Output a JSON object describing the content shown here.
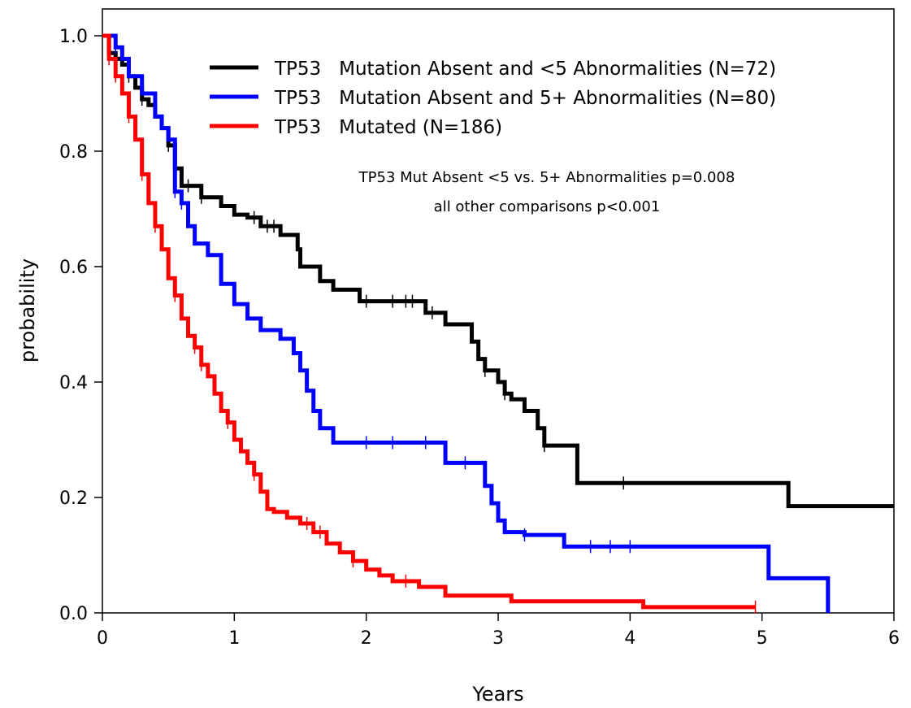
{
  "chart_data": {
    "type": "line",
    "subtype": "kaplan-meier-step",
    "xlabel": "Years",
    "ylabel": "probability",
    "xlim": [
      0,
      6
    ],
    "ylim": [
      0,
      1
    ],
    "xticks": [
      "0",
      "1",
      "2",
      "3",
      "4",
      "5",
      "6"
    ],
    "yticks": [
      "0.0",
      "0.2",
      "0.4",
      "0.6",
      "0.8",
      "1.0"
    ],
    "grid": false,
    "legend_position": "top-right",
    "annotations": [
      "TP53   Mut Absent <5 vs. 5+ Abnormalities p=0.008",
      "all other comparisons p<0.001"
    ],
    "series": [
      {
        "name": "TP53   Mutation Absent and <5 Abnormalities (N=72)",
        "color": "#000000",
        "x": [
          0,
          0.05,
          0.1,
          0.15,
          0.2,
          0.25,
          0.3,
          0.35,
          0.4,
          0.45,
          0.5,
          0.55,
          0.6,
          0.75,
          0.9,
          1.0,
          1.1,
          1.2,
          1.35,
          1.48,
          1.5,
          1.65,
          1.75,
          1.95,
          2.45,
          2.6,
          2.8,
          2.85,
          2.9,
          3.0,
          3.05,
          3.1,
          3.2,
          3.3,
          3.35,
          3.6,
          5.2,
          6.0
        ],
        "y": [
          1.0,
          0.97,
          0.96,
          0.95,
          0.93,
          0.91,
          0.89,
          0.88,
          0.86,
          0.84,
          0.81,
          0.77,
          0.74,
          0.72,
          0.705,
          0.69,
          0.685,
          0.67,
          0.655,
          0.63,
          0.6,
          0.575,
          0.56,
          0.54,
          0.52,
          0.5,
          0.47,
          0.44,
          0.42,
          0.4,
          0.38,
          0.37,
          0.35,
          0.32,
          0.29,
          0.225,
          0.185,
          0.185
        ],
        "censor_x": [
          0.05,
          0.1,
          0.2,
          0.3,
          0.5,
          0.55,
          0.65,
          0.75,
          1.15,
          1.25,
          1.3,
          2.0,
          2.2,
          2.3,
          2.35,
          2.5,
          2.9,
          3.05,
          3.35,
          3.95
        ]
      },
      {
        "name": "TP53   Mutation Absent and 5+ Abnormalities (N=80)",
        "color": "#0000ff",
        "x": [
          0,
          0.1,
          0.15,
          0.2,
          0.3,
          0.4,
          0.45,
          0.5,
          0.55,
          0.6,
          0.65,
          0.7,
          0.8,
          0.9,
          1.0,
          1.1,
          1.2,
          1.35,
          1.45,
          1.5,
          1.55,
          1.6,
          1.65,
          1.75,
          2.6,
          2.9,
          2.95,
          3.0,
          3.05,
          3.2,
          3.5,
          5.05,
          5.5
        ],
        "y": [
          1.0,
          0.98,
          0.96,
          0.93,
          0.9,
          0.86,
          0.84,
          0.82,
          0.73,
          0.71,
          0.67,
          0.64,
          0.62,
          0.57,
          0.535,
          0.51,
          0.49,
          0.475,
          0.45,
          0.42,
          0.385,
          0.35,
          0.32,
          0.295,
          0.26,
          0.22,
          0.19,
          0.16,
          0.14,
          0.135,
          0.115,
          0.06,
          0.0
        ],
        "censor_x": [
          0.1,
          0.55,
          0.6,
          2.0,
          2.2,
          2.45,
          2.75,
          3.2,
          3.7,
          3.85,
          4.0
        ]
      },
      {
        "name": "TP53   Mutated (N=186)",
        "color": "#ff0000",
        "x": [
          0,
          0.05,
          0.1,
          0.15,
          0.2,
          0.25,
          0.3,
          0.35,
          0.4,
          0.45,
          0.5,
          0.55,
          0.6,
          0.65,
          0.7,
          0.75,
          0.8,
          0.85,
          0.9,
          0.95,
          1.0,
          1.05,
          1.1,
          1.15,
          1.2,
          1.25,
          1.3,
          1.4,
          1.5,
          1.6,
          1.7,
          1.8,
          1.9,
          2.0,
          2.1,
          2.2,
          2.4,
          2.6,
          3.1,
          4.1,
          4.95
        ],
        "y": [
          1.0,
          0.96,
          0.93,
          0.9,
          0.86,
          0.82,
          0.76,
          0.71,
          0.67,
          0.63,
          0.58,
          0.55,
          0.51,
          0.48,
          0.46,
          0.43,
          0.41,
          0.38,
          0.35,
          0.33,
          0.3,
          0.28,
          0.26,
          0.24,
          0.21,
          0.18,
          0.175,
          0.165,
          0.155,
          0.14,
          0.12,
          0.105,
          0.09,
          0.075,
          0.065,
          0.055,
          0.045,
          0.03,
          0.02,
          0.01,
          0.01
        ],
        "censor_x": [
          0.05,
          0.1,
          0.2,
          0.3,
          0.4,
          0.55,
          0.7,
          0.75,
          0.95,
          1.15,
          1.55,
          1.65,
          1.9,
          2.3,
          4.95
        ]
      }
    ]
  }
}
